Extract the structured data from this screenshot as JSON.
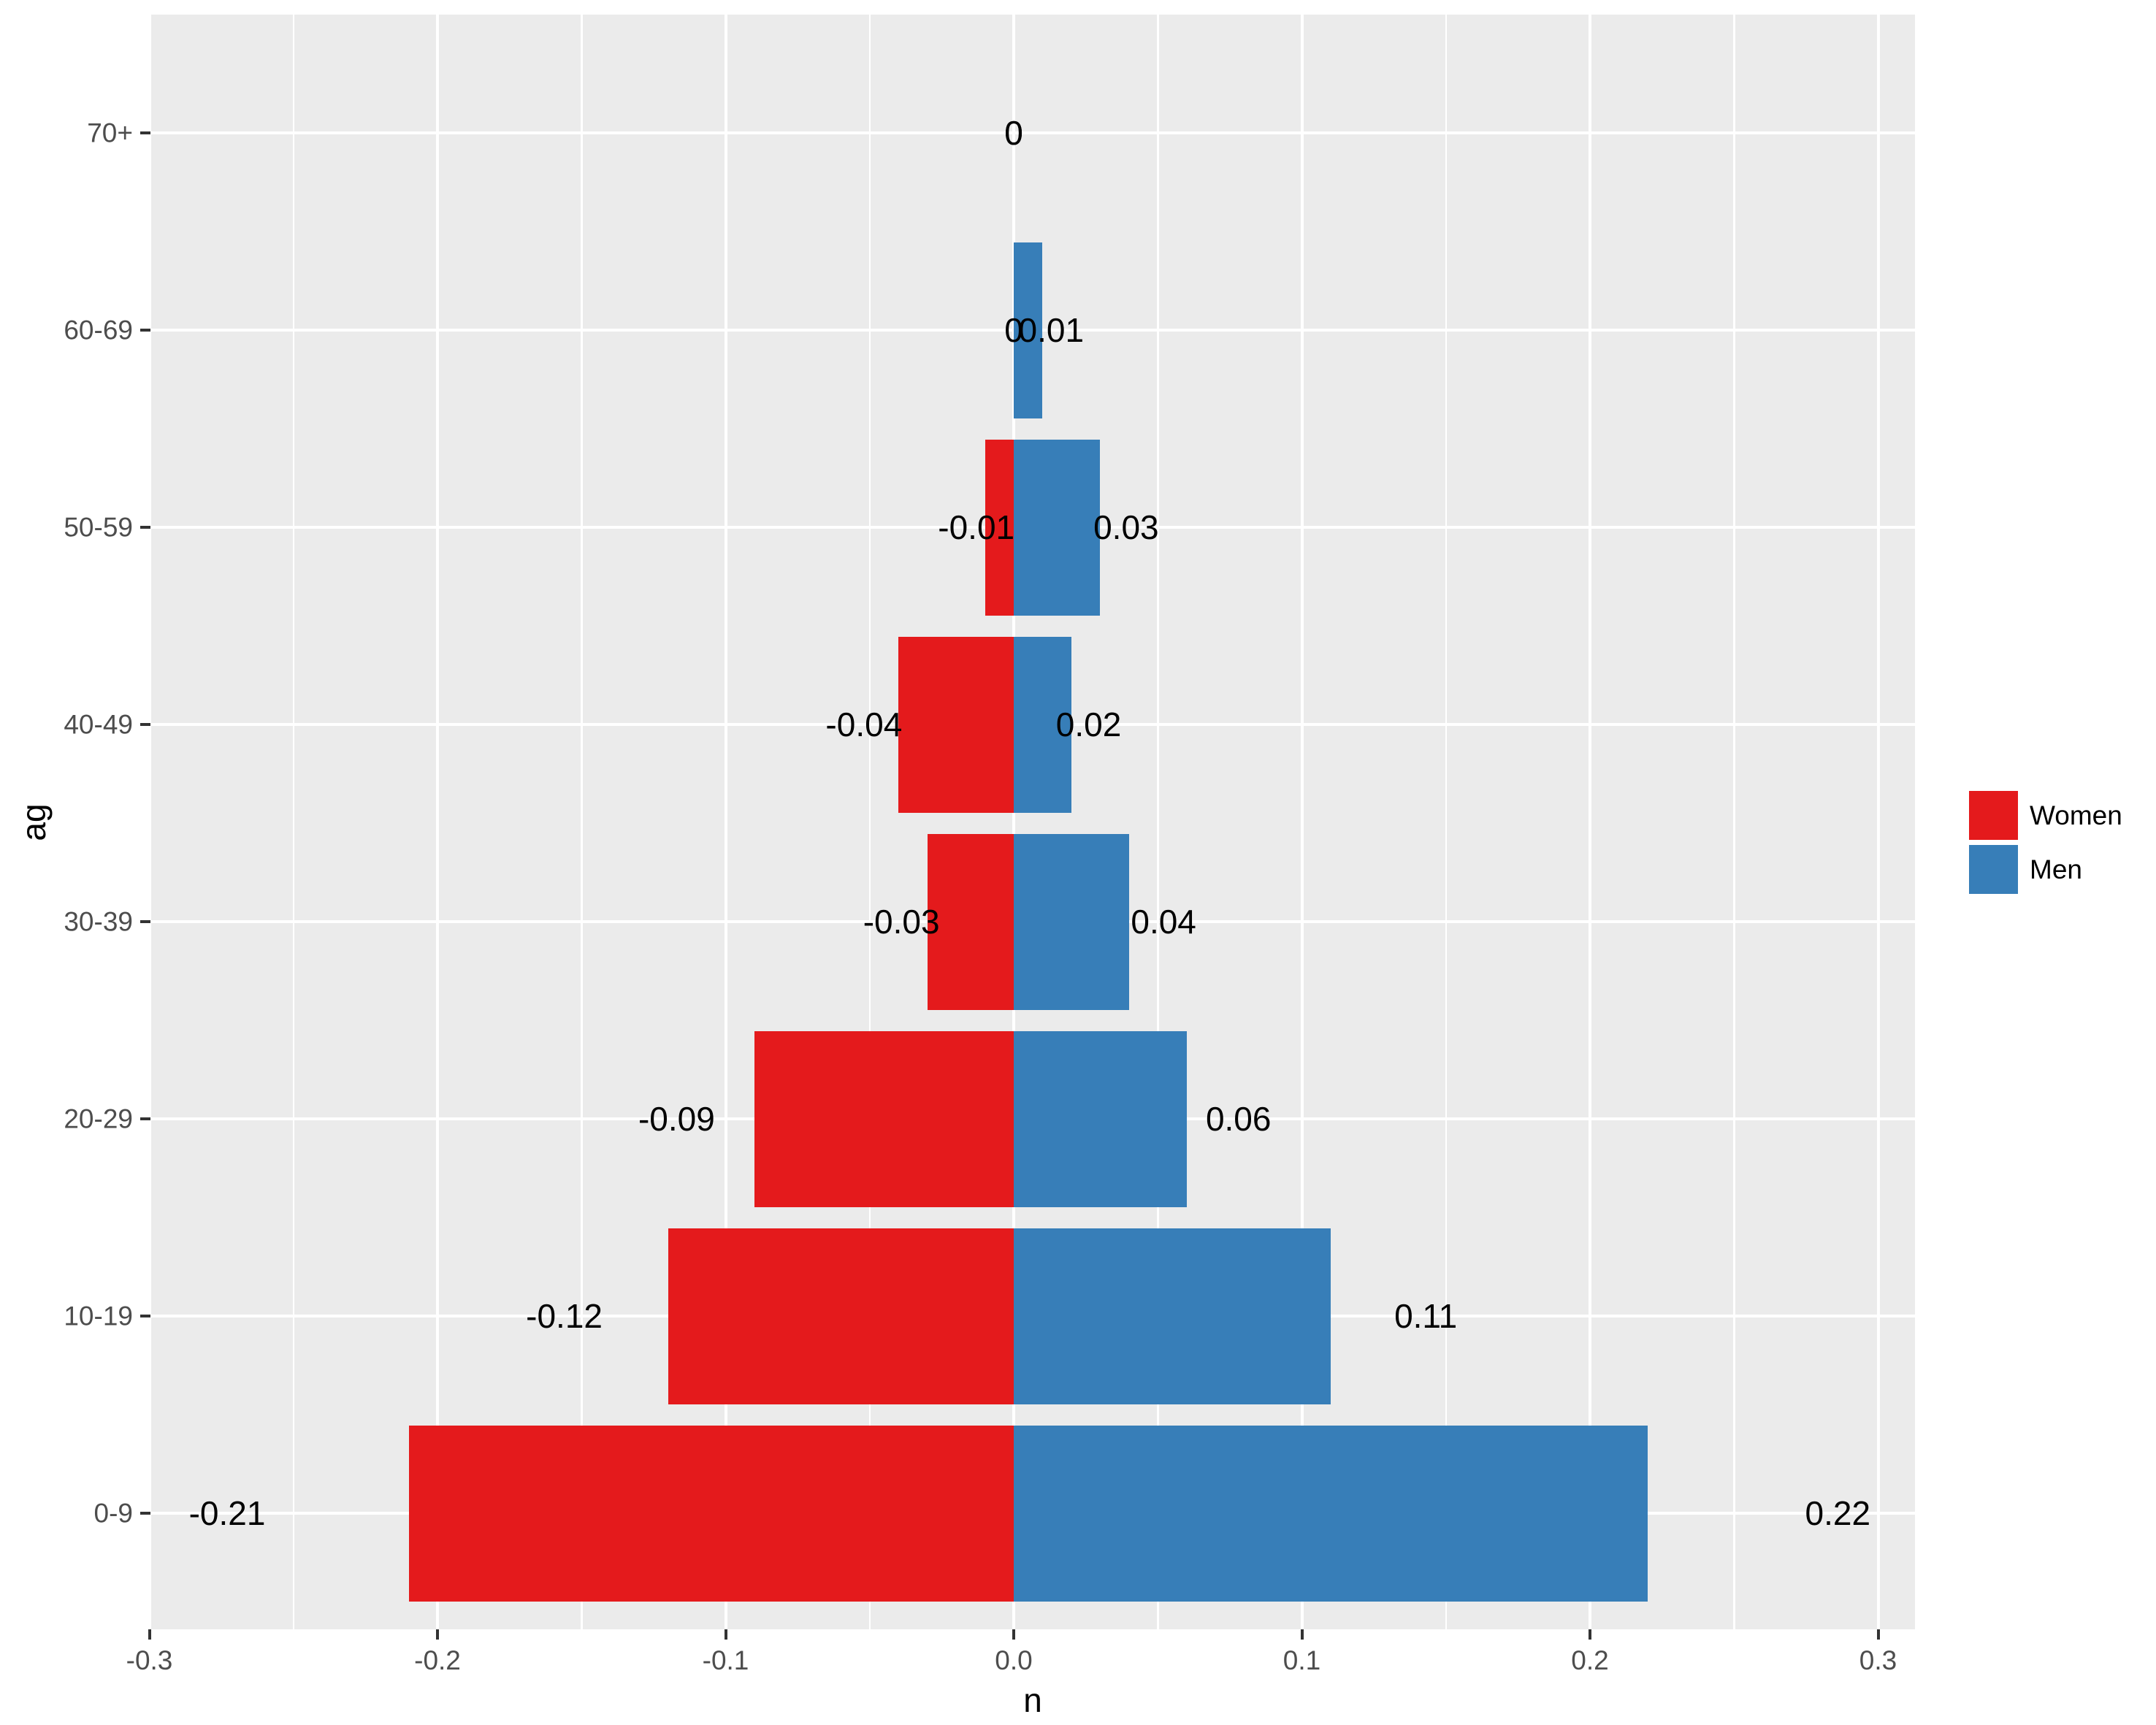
{
  "chart_data": {
    "type": "bar",
    "variant": "population-pyramid-horizontal",
    "title": "",
    "xlabel": "n",
    "ylabel": "ag",
    "categories_top_to_bottom": [
      "70+",
      "60-69",
      "50-59",
      "40-49",
      "30-39",
      "20-29",
      "10-19",
      "0-9"
    ],
    "series": [
      {
        "name": "Women",
        "color": "#E41A1C",
        "values": [
          0,
          0,
          -0.01,
          -0.04,
          -0.03,
          -0.09,
          -0.12,
          -0.21
        ],
        "labels": [
          "0",
          "0",
          "-0.01",
          "-0.04",
          "-0.03",
          "-0.09",
          "-0.12",
          "-0.21"
        ]
      },
      {
        "name": "Men",
        "color": "#377EB8",
        "values": [
          0,
          0.01,
          0.03,
          0.02,
          0.04,
          0.06,
          0.11,
          0.22
        ],
        "labels": [
          "0",
          "0.01",
          "0.03",
          "0.02",
          "0.04",
          "0.06",
          "0.11",
          "0.22"
        ]
      }
    ],
    "x_ticks": {
      "values": [
        -0.3,
        -0.2,
        -0.1,
        0,
        0.1,
        0.2,
        0.3
      ],
      "labels": [
        "-0.3",
        "-0.2",
        "-0.1",
        "0.0",
        "0.1",
        "0.2",
        "0.3"
      ]
    },
    "xlim": [
      -0.3,
      0.3
    ],
    "grid": "major and minor vertical white gridlines, major horizontal per category",
    "label_offset_factor": 1.3,
    "legend": {
      "position": "right",
      "entries": [
        {
          "label": "Women",
          "color": "#E41A1C"
        },
        {
          "label": "Men",
          "color": "#377EB8"
        }
      ]
    },
    "colors": {
      "panel_background": "#EBEBEB",
      "gridline": "#FFFFFF",
      "axis_text": "#4D4D4D",
      "tick_mark": "#333333",
      "bar_label_text": "#000000"
    }
  }
}
